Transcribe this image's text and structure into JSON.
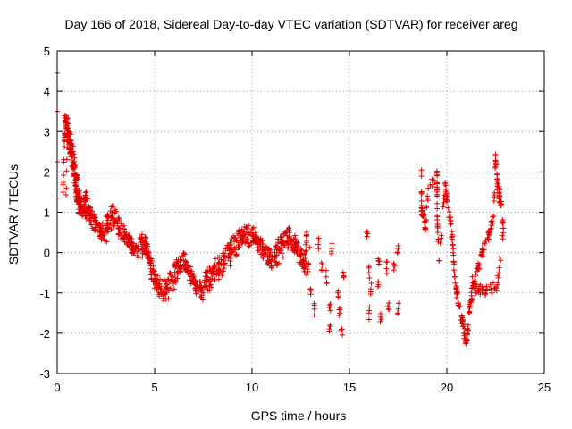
{
  "chart_data": {
    "type": "scatter",
    "title": "Day 166 of 2018, Sidereal Day-to-day VTEC variation (SDTVAR) for receiver areg",
    "xlabel": "GPS time / hours",
    "ylabel": "SDTVAR / TECUs",
    "xlim": [
      0,
      25
    ],
    "ylim": [
      -3,
      5
    ],
    "xticks": [
      "0",
      "5",
      "10",
      "15",
      "20",
      "25"
    ],
    "yticks": [
      "-3",
      "-2",
      "-1",
      "0",
      "1",
      "2",
      "3",
      "4",
      "5"
    ],
    "grid": true,
    "marker": "plus",
    "color": "#e00000",
    "series": [
      {
        "name": "SDTVAR",
        "trace": [
          [
            0.0,
            4.45
          ],
          [
            0.0,
            3.5
          ],
          [
            0.0,
            2.25
          ],
          [
            0.0,
            1.35
          ],
          [
            0.3,
            1.5
          ],
          [
            0.4,
            3.4
          ],
          [
            0.5,
            3.1
          ],
          [
            0.6,
            2.8
          ],
          [
            0.7,
            2.5
          ],
          [
            0.8,
            2.2
          ],
          [
            0.9,
            1.9
          ],
          [
            1.0,
            1.5
          ],
          [
            1.1,
            1.2
          ],
          [
            1.3,
            1.1
          ],
          [
            1.5,
            1.3
          ],
          [
            1.7,
            0.9
          ],
          [
            2.0,
            0.7
          ],
          [
            2.3,
            0.5
          ],
          [
            2.6,
            0.8
          ],
          [
            2.9,
            1.0
          ],
          [
            3.2,
            0.6
          ],
          [
            3.5,
            0.4
          ],
          [
            3.8,
            0.2
          ],
          [
            4.1,
            0.1
          ],
          [
            4.4,
            0.3
          ],
          [
            4.6,
            0.1
          ],
          [
            4.8,
            -0.4
          ],
          [
            5.0,
            -0.7
          ],
          [
            5.3,
            -0.9
          ],
          [
            5.6,
            -0.8
          ],
          [
            5.9,
            -0.6
          ],
          [
            6.2,
            -0.3
          ],
          [
            6.5,
            -0.2
          ],
          [
            6.8,
            -0.5
          ],
          [
            7.1,
            -0.8
          ],
          [
            7.4,
            -0.9
          ],
          [
            7.7,
            -0.6
          ],
          [
            8.0,
            -0.4
          ],
          [
            8.3,
            -0.3
          ],
          [
            8.6,
            -0.1
          ],
          [
            8.9,
            0.1
          ],
          [
            9.2,
            0.3
          ],
          [
            9.5,
            0.4
          ],
          [
            9.8,
            0.5
          ],
          [
            10.1,
            0.4
          ],
          [
            10.4,
            0.2
          ],
          [
            10.7,
            0.0
          ],
          [
            11.0,
            -0.2
          ],
          [
            11.3,
            0.1
          ],
          [
            11.6,
            0.3
          ],
          [
            11.9,
            0.4
          ],
          [
            12.2,
            0.2
          ],
          [
            12.5,
            -0.1
          ],
          [
            12.7,
            -0.3
          ],
          [
            12.8,
            0.3
          ]
        ],
        "scatter": [
          [
            13.0,
            -0.9
          ],
          [
            13.2,
            -1.4
          ],
          [
            13.4,
            0.2
          ],
          [
            13.6,
            -0.3
          ],
          [
            13.8,
            -0.6
          ],
          [
            14.0,
            -1.3
          ],
          [
            14.0,
            -1.8
          ],
          [
            14.1,
            0.1
          ],
          [
            14.4,
            -1.0
          ],
          [
            14.5,
            -1.5
          ],
          [
            14.6,
            -1.9
          ],
          [
            14.7,
            -0.6
          ],
          [
            15.9,
            0.4
          ],
          [
            16.0,
            -0.5
          ],
          [
            16.0,
            -1.5
          ],
          [
            16.1,
            -0.9
          ],
          [
            16.5,
            -0.2
          ],
          [
            16.5,
            -0.8
          ],
          [
            16.6,
            -1.6
          ],
          [
            16.9,
            -0.4
          ],
          [
            17.0,
            -1.4
          ],
          [
            17.3,
            -0.3
          ],
          [
            17.5,
            0.1
          ],
          [
            17.5,
            -1.4
          ]
        ],
        "late_trace": [
          [
            18.7,
            2.0
          ],
          [
            18.7,
            1.1
          ],
          [
            18.8,
            0.9
          ],
          [
            18.9,
            0.6
          ],
          [
            19.0,
            1.4
          ],
          [
            19.5,
            2.0
          ],
          [
            19.5,
            1.5
          ],
          [
            19.5,
            0.9
          ],
          [
            19.6,
            -0.2
          ],
          [
            19.9,
            1.7
          ],
          [
            20.0,
            1.3
          ],
          [
            20.2,
            0.7
          ],
          [
            20.3,
            0.2
          ],
          [
            20.4,
            -0.6
          ],
          [
            20.5,
            -1.0
          ],
          [
            20.6,
            -1.3
          ],
          [
            20.8,
            -1.7
          ],
          [
            20.9,
            -2.0
          ],
          [
            21.0,
            -2.2
          ],
          [
            21.1,
            -1.8
          ],
          [
            21.2,
            -1.2
          ],
          [
            21.4,
            -0.8
          ],
          [
            21.6,
            -0.4
          ],
          [
            21.8,
            0.0
          ],
          [
            22.0,
            0.3
          ],
          [
            22.2,
            0.5
          ],
          [
            22.4,
            0.9
          ],
          [
            22.5,
            2.4
          ],
          [
            22.6,
            1.7
          ],
          [
            22.7,
            1.4
          ],
          [
            22.8,
            1.2
          ],
          [
            22.9,
            0.6
          ],
          [
            22.6,
            -0.8
          ],
          [
            22.2,
            -0.9
          ],
          [
            21.8,
            -0.9
          ],
          [
            21.5,
            -1.0
          ],
          [
            21.3,
            -0.6
          ]
        ]
      }
    ]
  }
}
